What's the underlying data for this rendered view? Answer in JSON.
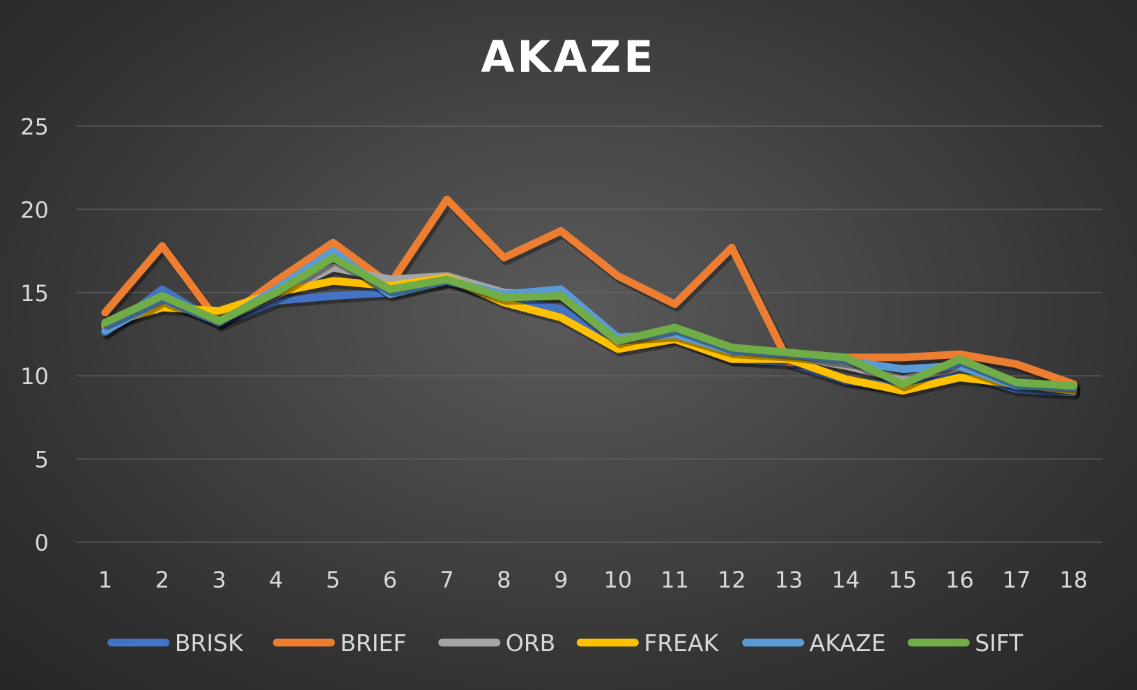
{
  "chart_data": {
    "type": "line",
    "title": "AKAZE",
    "xlabel": "",
    "ylabel": "",
    "categories": [
      "1",
      "2",
      "3",
      "4",
      "5",
      "6",
      "7",
      "8",
      "9",
      "10",
      "11",
      "12",
      "13",
      "14",
      "15",
      "16",
      "17",
      "18"
    ],
    "ylim": [
      0,
      25
    ],
    "yticks": [
      0,
      5,
      10,
      15,
      20,
      25
    ],
    "grid": true,
    "legend_position": "bottom",
    "series": [
      {
        "name": "BRISK",
        "color": "#4472c4",
        "values": [
          12.6,
          15.2,
          13.1,
          14.5,
          14.8,
          15.0,
          15.7,
          14.6,
          14.0,
          11.8,
          12.3,
          11.0,
          10.8,
          9.7,
          9.3,
          10.2,
          9.2,
          9.0
        ]
      },
      {
        "name": "BRIEF",
        "color": "#ed7d31",
        "values": [
          13.8,
          17.8,
          13.2,
          15.7,
          18.0,
          15.5,
          20.6,
          17.1,
          18.7,
          16.0,
          14.3,
          17.7,
          10.8,
          11.1,
          11.1,
          11.3,
          10.7,
          9.5
        ]
      },
      {
        "name": "ORB",
        "color": "#a5a5a5",
        "values": [
          13.0,
          14.5,
          13.3,
          14.8,
          16.5,
          15.8,
          16.0,
          15.0,
          14.8,
          12.0,
          12.6,
          11.5,
          11.2,
          10.6,
          9.8,
          10.5,
          9.6,
          9.3
        ]
      },
      {
        "name": "FREAK",
        "color": "#ffc000",
        "values": [
          13.1,
          14.1,
          13.9,
          15.0,
          15.7,
          15.4,
          15.9,
          14.4,
          13.5,
          11.6,
          12.2,
          11.0,
          11.0,
          9.8,
          9.1,
          9.9,
          9.5,
          9.1
        ]
      },
      {
        "name": "AKAZE",
        "color": "#5b9bd5",
        "values": [
          12.7,
          14.6,
          13.2,
          15.2,
          17.5,
          14.9,
          15.7,
          14.9,
          15.2,
          12.3,
          12.5,
          11.5,
          11.3,
          10.9,
          10.4,
          10.6,
          9.4,
          9.3
        ]
      },
      {
        "name": "SIFT",
        "color": "#70ad47",
        "values": [
          13.2,
          14.8,
          13.3,
          15.0,
          17.1,
          15.2,
          15.8,
          14.7,
          14.8,
          12.1,
          12.9,
          11.7,
          11.4,
          11.1,
          9.5,
          11.0,
          9.6,
          9.4
        ]
      }
    ]
  }
}
